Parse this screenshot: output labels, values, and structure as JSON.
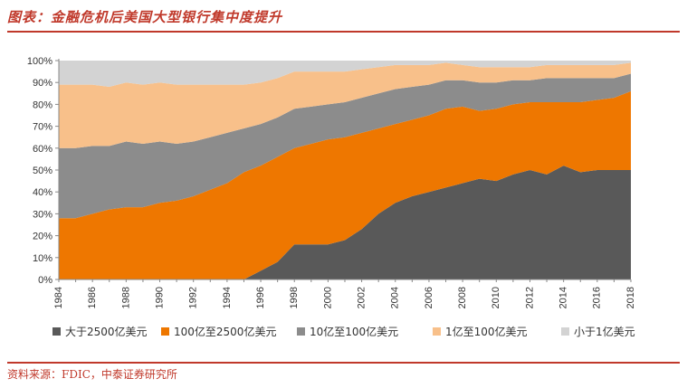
{
  "title": "图表：金融危机后美国大型银行集中度提升",
  "source": "资料来源：FDIC，中泰证券研究所",
  "chart_data": {
    "type": "area",
    "stacked": true,
    "x": [
      1984,
      1985,
      1986,
      1987,
      1988,
      1989,
      1990,
      1991,
      1992,
      1993,
      1994,
      1995,
      1996,
      1997,
      1998,
      1999,
      2000,
      2001,
      2002,
      2003,
      2004,
      2005,
      2006,
      2007,
      2008,
      2009,
      2010,
      2011,
      2012,
      2013,
      2014,
      2015,
      2016,
      2017,
      2018
    ],
    "x_ticks": [
      "1984",
      "1986",
      "1988",
      "1990",
      "1992",
      "1994",
      "1996",
      "1998",
      "2000",
      "2002",
      "2004",
      "2006",
      "2008",
      "2010",
      "2012",
      "2014",
      "2016",
      "2018"
    ],
    "y_ticks": [
      "0%",
      "10%",
      "20%",
      "30%",
      "40%",
      "50%",
      "60%",
      "70%",
      "80%",
      "90%",
      "100%"
    ],
    "ylim": [
      0,
      100
    ],
    "legend_position": "bottom",
    "series": [
      {
        "name": "大于2500亿美元",
        "color": "#595959",
        "values": [
          0,
          0,
          0,
          0,
          0,
          0,
          0,
          0,
          0,
          0,
          0,
          0,
          4,
          8,
          16,
          16,
          16,
          18,
          23,
          30,
          35,
          38,
          40,
          42,
          44,
          46,
          45,
          48,
          50,
          48,
          52,
          49,
          50,
          50,
          50
        ]
      },
      {
        "name": "100亿至2500亿美元",
        "color": "#ee7700",
        "values": [
          28,
          28,
          30,
          32,
          33,
          33,
          35,
          36,
          38,
          41,
          44,
          49,
          48,
          48,
          44,
          46,
          48,
          47,
          44,
          39,
          36,
          35,
          35,
          36,
          35,
          31,
          33,
          32,
          31,
          33,
          29,
          32,
          32,
          33,
          36
        ]
      },
      {
        "name": "10亿至100亿美元",
        "color": "#8c8c8c",
        "values": [
          32,
          32,
          31,
          29,
          30,
          29,
          28,
          26,
          25,
          24,
          23,
          20,
          19,
          18,
          18,
          17,
          16,
          16,
          16,
          16,
          16,
          15,
          14,
          13,
          12,
          13,
          12,
          11,
          10,
          11,
          11,
          11,
          10,
          9,
          8
        ]
      },
      {
        "name": "1亿至100亿美元",
        "color": "#f8c08a",
        "values": [
          29,
          29,
          28,
          27,
          27,
          27,
          27,
          27,
          26,
          24,
          22,
          20,
          19,
          18,
          17,
          16,
          15,
          14,
          13,
          12,
          11,
          10,
          9,
          8,
          7,
          7,
          7,
          6,
          6,
          6,
          6,
          6,
          6,
          6,
          5
        ]
      },
      {
        "name": "小于1亿美元",
        "color": "#d3d3d3",
        "values": [
          11,
          11,
          11,
          12,
          10,
          11,
          10,
          11,
          11,
          11,
          11,
          11,
          10,
          8,
          5,
          5,
          5,
          5,
          4,
          3,
          2,
          2,
          2,
          1,
          2,
          3,
          3,
          3,
          3,
          2,
          2,
          2,
          2,
          2,
          1
        ]
      }
    ]
  }
}
